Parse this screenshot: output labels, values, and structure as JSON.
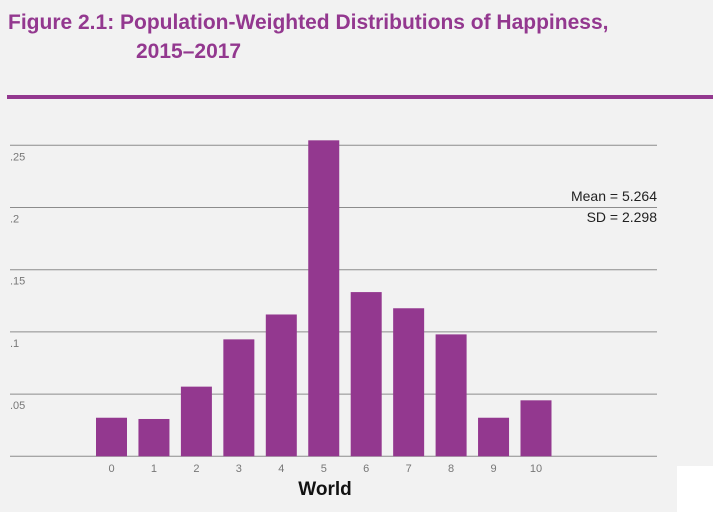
{
  "title_line1": "Figure 2.1: Population-Weighted Distributions of Happiness,",
  "title_line2": "2015–2017",
  "colors": {
    "bar": "#93388f",
    "title": "#93388f",
    "grid": "#8c8c8c"
  },
  "chart_data": {
    "type": "bar",
    "title": "Figure 2.1: Population-Weighted Distributions of Happiness, 2015–2017",
    "xlabel": "World",
    "ylabel": "",
    "categories": [
      "0",
      "1",
      "2",
      "3",
      "4",
      "5",
      "6",
      "7",
      "8",
      "9",
      "10"
    ],
    "values": [
      0.031,
      0.03,
      0.056,
      0.094,
      0.114,
      0.254,
      0.132,
      0.119,
      0.098,
      0.031,
      0.045
    ],
    "ylim": [
      0,
      0.25
    ],
    "yticks": [
      ".05",
      ".1",
      ".15",
      ".2",
      ".25"
    ],
    "ytick_values": [
      0.05,
      0.1,
      0.15,
      0.2,
      0.25
    ],
    "grid": true,
    "annotations": [
      "Mean = 5.264",
      "SD = 2.298"
    ]
  }
}
